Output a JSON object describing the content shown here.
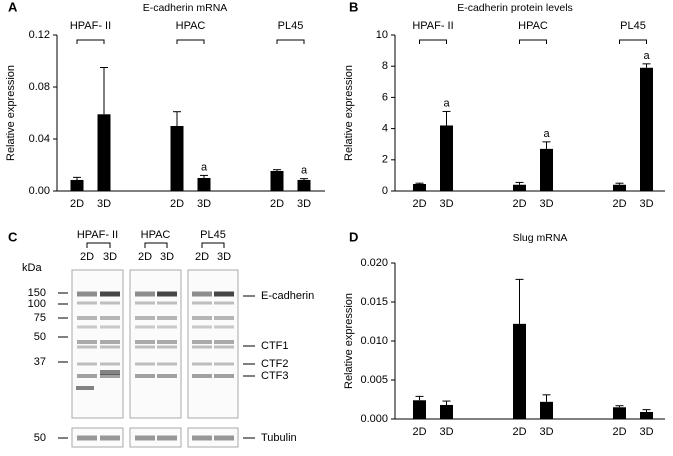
{
  "chart_data": [
    {
      "type": "bar",
      "panel_label": "A",
      "title": "E-cadherin mRNA",
      "ylabel": "Relative expression",
      "groups": [
        "HPAF- II",
        "HPAC",
        "PL45"
      ],
      "categories": [
        "2D",
        "3D",
        "2D",
        "3D",
        "2D",
        "3D"
      ],
      "values": [
        0.0085,
        0.059,
        0.05,
        0.01,
        0.0154,
        0.0085
      ],
      "errors": [
        0.002,
        0.036,
        0.011,
        0.002,
        0.001,
        0.001
      ],
      "annotations": [
        null,
        null,
        null,
        "a",
        null,
        "a"
      ],
      "color": "#000000",
      "ylim": [
        0,
        0.12
      ],
      "yticks": [
        {
          "value": 0,
          "label": "0.00"
        },
        {
          "value": 0.04,
          "label": "0.04"
        },
        {
          "value": 0.08,
          "label": "0.08"
        },
        {
          "value": 0.12,
          "label": "0.12"
        }
      ]
    },
    {
      "type": "bar",
      "panel_label": "B",
      "title": "E-cadherin protein levels",
      "ylabel": "Relative expression",
      "groups": [
        "HPAF- II",
        "HPAC",
        "PL45"
      ],
      "categories": [
        "2D",
        "3D",
        "2D",
        "3D",
        "2D",
        "3D"
      ],
      "values": [
        0.45,
        4.2,
        0.4,
        2.7,
        0.4,
        7.9
      ],
      "errors": [
        0.05,
        0.9,
        0.15,
        0.45,
        0.1,
        0.25
      ],
      "annotations": [
        null,
        "a",
        null,
        "a",
        null,
        "a"
      ],
      "color": "#000000",
      "ylim": [
        0,
        10
      ],
      "yticks": [
        0,
        2,
        4,
        6,
        8,
        10
      ]
    },
    {
      "type": "bar",
      "panel_label": "D",
      "title": "Slug mRNA",
      "ylabel": "Relative expression",
      "categories": [
        "2D",
        "3D",
        "2D",
        "3D",
        "2D",
        "3D"
      ],
      "values": [
        0.0024,
        0.0018,
        0.0122,
        0.0022,
        0.0015,
        0.0009
      ],
      "errors": [
        0.0005,
        0.0005,
        0.0057,
        0.0009,
        0.0002,
        0.0003
      ],
      "color": "#000000",
      "ylim": [
        0,
        0.02
      ],
      "yticks": [
        {
          "value": 0,
          "label": "0.000"
        },
        {
          "value": 0.005,
          "label": "0.005"
        },
        {
          "value": 0.01,
          "label": "0.010"
        },
        {
          "value": 0.015,
          "label": "0.015"
        },
        {
          "value": 0.02,
          "label": "0.020"
        }
      ]
    }
  ],
  "blot": {
    "panel_label": "C",
    "unit": "kDa",
    "groups": [
      "HPAF- II",
      "HPAC",
      "PL45"
    ],
    "lanes": [
      "2D",
      "3D",
      "2D",
      "3D",
      "2D",
      "3D"
    ],
    "markers": [
      "150",
      "100",
      "75",
      "50",
      "37",
      "50"
    ],
    "bands": [
      "E-cadherin",
      "CTF1",
      "CTF2",
      "CTF3",
      "Tubulin"
    ]
  }
}
